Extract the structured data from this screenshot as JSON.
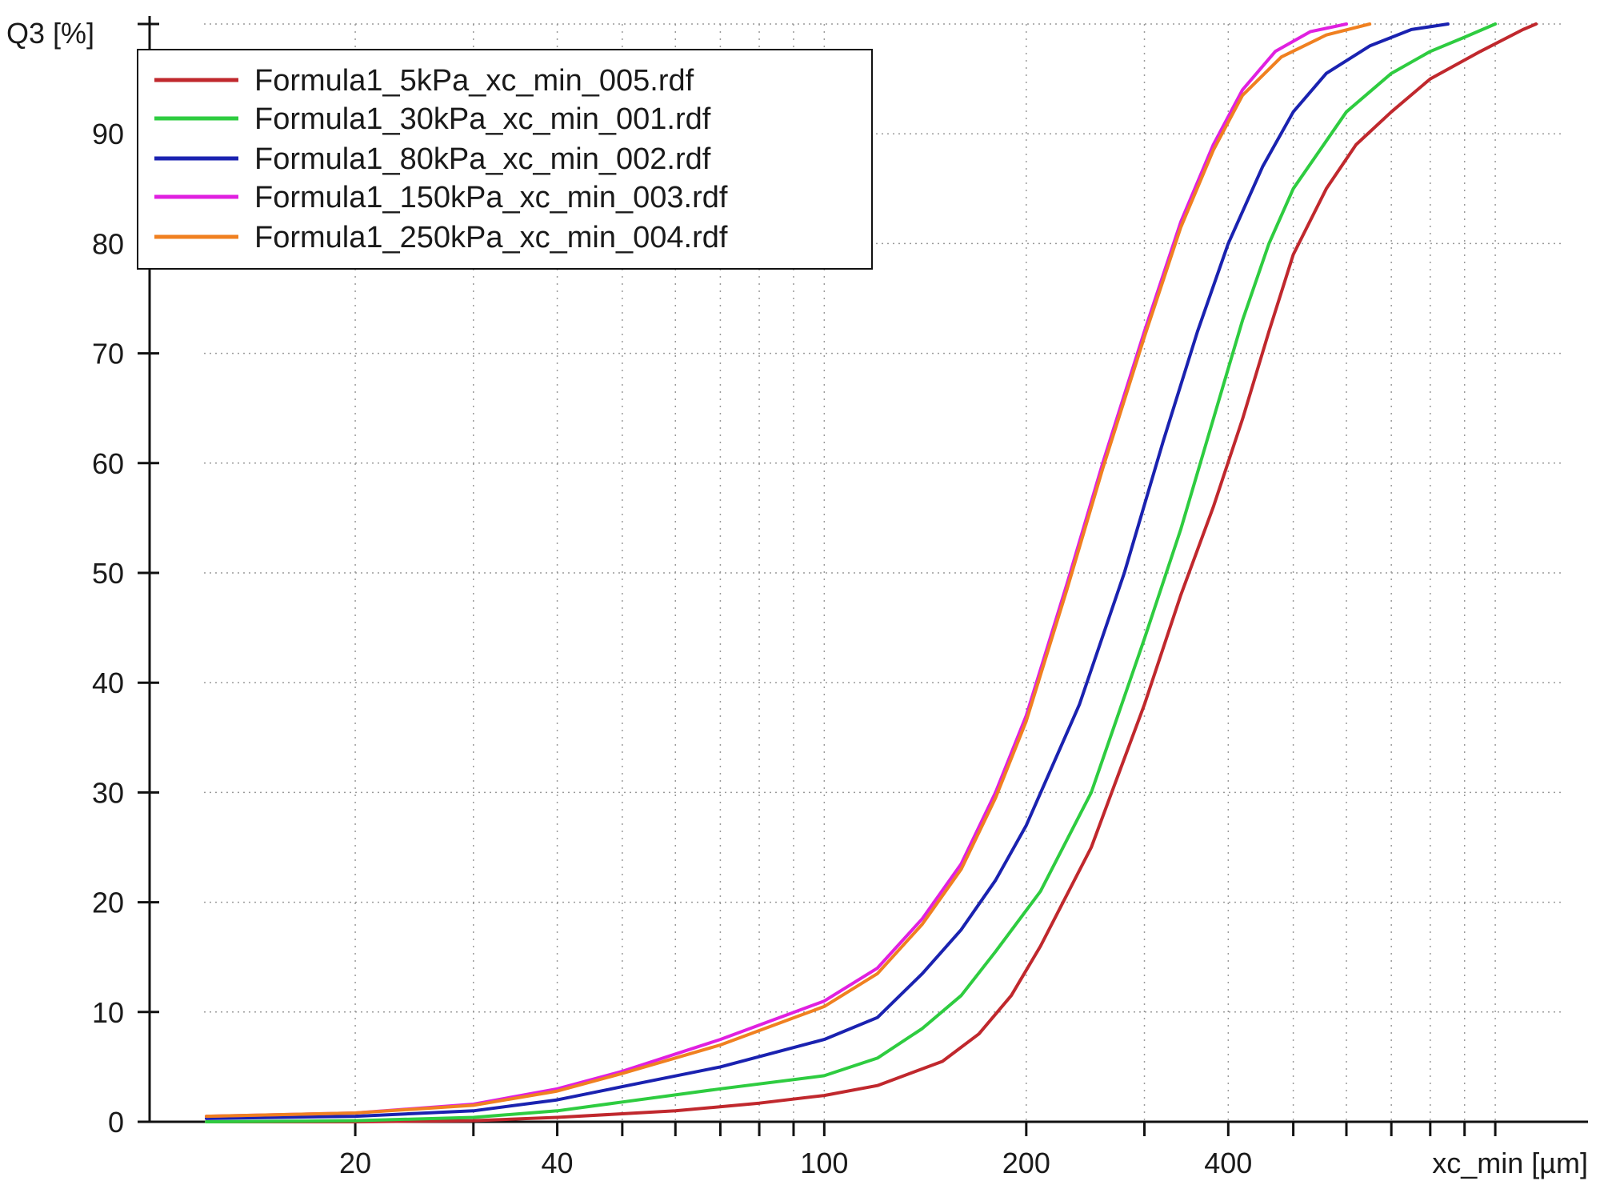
{
  "chart_data": {
    "type": "line",
    "ylabel": "Q3 [%]",
    "xlabel": "xc_min [µm]",
    "x_scale": "log",
    "xlim": [
      12,
      1150
    ],
    "ylim": [
      0,
      100
    ],
    "x_tick_labels": [
      {
        "value": 20,
        "label": "20"
      },
      {
        "value": 40,
        "label": "40"
      },
      {
        "value": 100,
        "label": "100"
      },
      {
        "value": 200,
        "label": "200"
      },
      {
        "value": 400,
        "label": "400"
      }
    ],
    "y_tick_labels": [
      0,
      10,
      20,
      30,
      40,
      50,
      60,
      70,
      80,
      90
    ],
    "grid": true,
    "legend_position": "top-left",
    "series": [
      {
        "name": "Formula1_5kPa_xc_min_005.rdf",
        "color": "#c0282d",
        "points": [
          [
            12,
            0
          ],
          [
            20,
            0
          ],
          [
            30,
            0.1
          ],
          [
            40,
            0.4
          ],
          [
            60,
            1
          ],
          [
            80,
            1.7
          ],
          [
            100,
            2.4
          ],
          [
            120,
            3.3
          ],
          [
            150,
            5.5
          ],
          [
            170,
            8
          ],
          [
            190,
            11.5
          ],
          [
            210,
            16
          ],
          [
            250,
            25
          ],
          [
            300,
            38
          ],
          [
            340,
            48
          ],
          [
            380,
            56
          ],
          [
            420,
            64
          ],
          [
            460,
            72
          ],
          [
            500,
            79
          ],
          [
            560,
            85
          ],
          [
            620,
            89
          ],
          [
            700,
            92
          ],
          [
            800,
            95
          ],
          [
            950,
            97.5
          ],
          [
            1100,
            99.5
          ],
          [
            1150,
            100
          ]
        ]
      },
      {
        "name": "Formula1_30kPa_xc_min_001.rdf",
        "color": "#2ecc40",
        "points": [
          [
            12,
            0
          ],
          [
            20,
            0.1
          ],
          [
            30,
            0.4
          ],
          [
            40,
            1
          ],
          [
            50,
            1.8
          ],
          [
            70,
            3
          ],
          [
            100,
            4.2
          ],
          [
            120,
            5.8
          ],
          [
            140,
            8.5
          ],
          [
            160,
            11.5
          ],
          [
            180,
            15.5
          ],
          [
            210,
            21
          ],
          [
            250,
            30
          ],
          [
            300,
            44
          ],
          [
            340,
            54
          ],
          [
            380,
            64
          ],
          [
            420,
            73
          ],
          [
            460,
            80
          ],
          [
            500,
            85
          ],
          [
            600,
            92
          ],
          [
            700,
            95.5
          ],
          [
            800,
            97.5
          ],
          [
            900,
            98.8
          ],
          [
            1000,
            100
          ]
        ]
      },
      {
        "name": "Formula1_80kPa_xc_min_002.rdf",
        "color": "#1a22b0",
        "points": [
          [
            12,
            0.3
          ],
          [
            20,
            0.5
          ],
          [
            30,
            1
          ],
          [
            40,
            2
          ],
          [
            50,
            3.2
          ],
          [
            70,
            5
          ],
          [
            100,
            7.5
          ],
          [
            120,
            9.5
          ],
          [
            140,
            13.5
          ],
          [
            160,
            17.5
          ],
          [
            180,
            22
          ],
          [
            200,
            27
          ],
          [
            240,
            38
          ],
          [
            280,
            50
          ],
          [
            320,
            62
          ],
          [
            360,
            72
          ],
          [
            400,
            80
          ],
          [
            450,
            87
          ],
          [
            500,
            92
          ],
          [
            560,
            95.5
          ],
          [
            650,
            98
          ],
          [
            750,
            99.5
          ],
          [
            850,
            100
          ]
        ]
      },
      {
        "name": "Formula1_150kPa_xc_min_003.rdf",
        "color": "#e020e0",
        "points": [
          [
            12,
            0.5
          ],
          [
            20,
            0.8
          ],
          [
            30,
            1.6
          ],
          [
            40,
            3
          ],
          [
            50,
            4.6
          ],
          [
            70,
            7.5
          ],
          [
            100,
            11
          ],
          [
            120,
            14
          ],
          [
            140,
            18.5
          ],
          [
            160,
            23.5
          ],
          [
            180,
            30
          ],
          [
            200,
            37
          ],
          [
            230,
            49
          ],
          [
            260,
            60
          ],
          [
            300,
            72
          ],
          [
            340,
            82
          ],
          [
            380,
            89
          ],
          [
            420,
            94
          ],
          [
            470,
            97.5
          ],
          [
            530,
            99.3
          ],
          [
            600,
            100
          ]
        ]
      },
      {
        "name": "Formula1_250kPa_xc_min_004.rdf",
        "color": "#f08020",
        "points": [
          [
            12,
            0.5
          ],
          [
            20,
            0.8
          ],
          [
            30,
            1.5
          ],
          [
            40,
            2.8
          ],
          [
            50,
            4.4
          ],
          [
            70,
            7
          ],
          [
            100,
            10.5
          ],
          [
            120,
            13.5
          ],
          [
            140,
            18
          ],
          [
            160,
            23
          ],
          [
            180,
            29.5
          ],
          [
            200,
            36.5
          ],
          [
            230,
            48.5
          ],
          [
            260,
            59.5
          ],
          [
            300,
            71.5
          ],
          [
            340,
            81.5
          ],
          [
            380,
            88.5
          ],
          [
            420,
            93.5
          ],
          [
            480,
            97
          ],
          [
            560,
            99
          ],
          [
            650,
            100
          ]
        ]
      }
    ]
  }
}
